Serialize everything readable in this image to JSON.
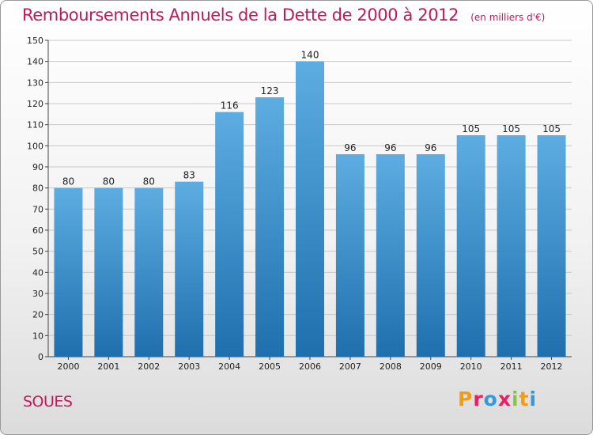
{
  "title": {
    "main": "Remboursements Annuels de la Dette de 2000 à 2012",
    "unit": "(en milliers d'€)"
  },
  "commune": "SOUES",
  "logo": {
    "letters": [
      "P",
      "r",
      "o",
      "x",
      "i",
      "t",
      "i"
    ],
    "colors": [
      "#f39c12",
      "#e91e63",
      "#3498db",
      "#e91e63",
      "#8bc34a",
      "#f39c12",
      "#3498db"
    ]
  },
  "colors": {
    "bar_light": "#5dade2",
    "bar_dark": "#1f6fae",
    "title": "#c2185b"
  },
  "chart_data": {
    "type": "bar",
    "categories": [
      "2000",
      "2001",
      "2002",
      "2003",
      "2004",
      "2005",
      "2006",
      "2007",
      "2008",
      "2009",
      "2010",
      "2011",
      "2012"
    ],
    "values": [
      80,
      80,
      80,
      83,
      116,
      123,
      140,
      96,
      96,
      96,
      105,
      105,
      105
    ],
    "ylim": [
      0,
      150
    ],
    "yticks": [
      0,
      10,
      20,
      30,
      40,
      50,
      60,
      70,
      80,
      90,
      100,
      110,
      120,
      130,
      140,
      150
    ],
    "grid": true
  }
}
